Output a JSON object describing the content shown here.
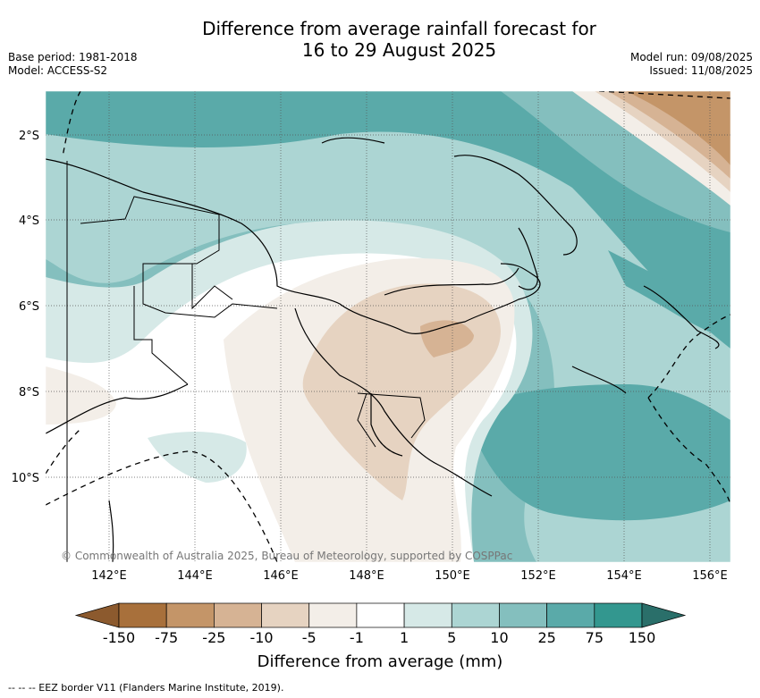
{
  "header": {
    "title_line1": "Difference from average rainfall forecast for",
    "title_line2": "16 to 29 August 2025",
    "base_period": "Base period: 1981-2018",
    "model": "Model: ACCESS-S2",
    "model_run": "Model run: 09/08/2025",
    "issued": "Issued: 11/08/2025"
  },
  "map": {
    "longitude_labels": [
      "142°E",
      "144°E",
      "146°E",
      "148°E",
      "150°E",
      "152°E",
      "154°E",
      "156°E"
    ],
    "latitude_labels": [
      "2°S",
      "4°S",
      "6°S",
      "8°S",
      "10°S"
    ],
    "copyright": "© Commonwealth of Australia 2025, Bureau of Meteorology, supported by COSPPac",
    "colors": {
      "dry_strong": "#8c5a2e",
      "wet_strong": "#2f7f7a"
    }
  },
  "colorbar": {
    "title": "Difference from average (mm)",
    "tick_labels": [
      "-150",
      "-75",
      "-25",
      "-10",
      "-5",
      "-1",
      "1",
      "5",
      "10",
      "25",
      "75",
      "150"
    ],
    "colors": [
      "#a8703b",
      "#c49568",
      "#d6b394",
      "#e6d3c1",
      "#f3eee8",
      "#ffffff",
      "#d6e9e7",
      "#acd5d3",
      "#84bfbe",
      "#5aaaa9",
      "#33978f"
    ],
    "extend_low_color": "#8c5a2e",
    "extend_high_color": "#2a6f6a"
  },
  "footnote": "--  --  -- EEZ border V11 (Flanders Marine Institute, 2019)."
}
